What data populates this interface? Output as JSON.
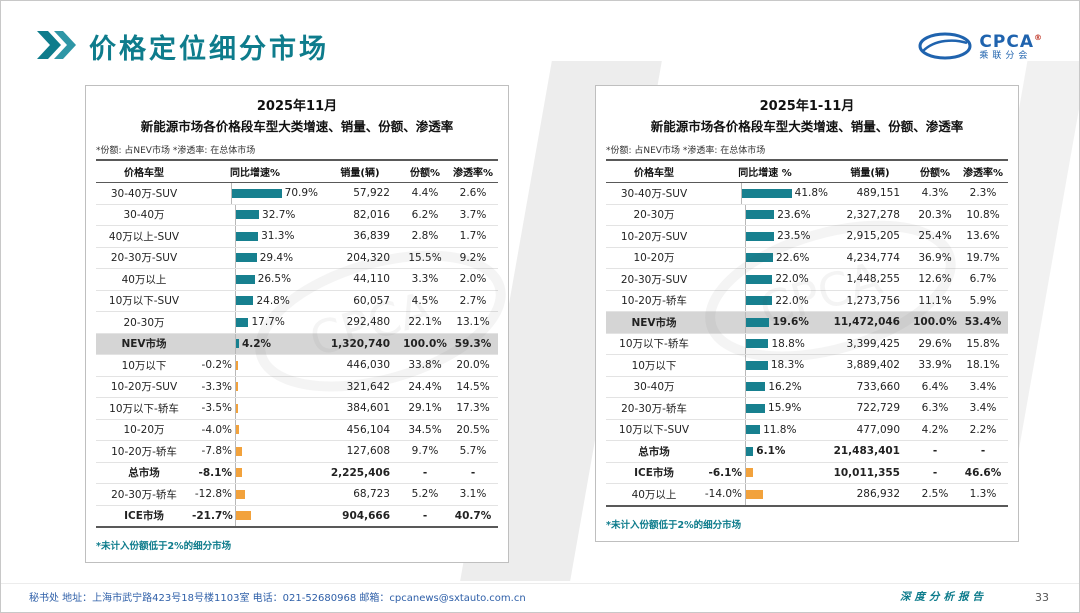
{
  "slide": {
    "title": "价格定位细分市场",
    "footer_text": "秘书处  地址：上海市武宁路423号18号楼1103室  电话：021-52680968  邮箱：cpcanews@sxtauto.com.cn",
    "report_label": "深度分析报告",
    "page_number": "33",
    "logo_text": "CPCA",
    "logo_reg": "®",
    "logo_subtext": "乘联分会"
  },
  "colors": {
    "accent_teal": "#0E7C8C",
    "bar_positive": "#17808F",
    "bar_negative": "#F2A23C",
    "highlight_row": "#D5D5D5",
    "footer_blue": "#2E5FA8",
    "logo_blue": "#1F63AE"
  },
  "chart_data": [
    {
      "type": "table",
      "title_line1": "2025年11月",
      "title_line2": "新能源市场各价格段车型大类增速、销量、份额、渗透率",
      "note": "*份额: 占NEV市场  *渗透率: 在总体市场",
      "footnote": "*未计入份额低于2%的细分市场",
      "columns": [
        "价格车型",
        "同比增速%",
        "销量(辆)",
        "份额%",
        "渗透率%"
      ],
      "bar_max": 70.9,
      "rows": [
        {
          "label": "30-40万-SUV",
          "growth": 70.9,
          "growth_label": "70.9%",
          "sales": "57,922",
          "share": "4.4%",
          "penetration": "2.6%"
        },
        {
          "label": "30-40万",
          "growth": 32.7,
          "growth_label": "32.7%",
          "sales": "82,016",
          "share": "6.2%",
          "penetration": "3.7%"
        },
        {
          "label": "40万以上-SUV",
          "growth": 31.3,
          "growth_label": "31.3%",
          "sales": "36,839",
          "share": "2.8%",
          "penetration": "1.7%"
        },
        {
          "label": "20-30万-SUV",
          "growth": 29.4,
          "growth_label": "29.4%",
          "sales": "204,320",
          "share": "15.5%",
          "penetration": "9.2%"
        },
        {
          "label": "40万以上",
          "growth": 26.5,
          "growth_label": "26.5%",
          "sales": "44,110",
          "share": "3.3%",
          "penetration": "2.0%"
        },
        {
          "label": "10万以下-SUV",
          "growth": 24.8,
          "growth_label": "24.8%",
          "sales": "60,057",
          "share": "4.5%",
          "penetration": "2.7%"
        },
        {
          "label": "20-30万",
          "growth": 17.7,
          "growth_label": "17.7%",
          "sales": "292,480",
          "share": "22.1%",
          "penetration": "13.1%"
        },
        {
          "label": "NEV市场",
          "growth": 4.2,
          "growth_label": "4.2%",
          "sales": "1,320,740",
          "share": "100.0%",
          "penetration": "59.3%",
          "highlight": true,
          "bold": true
        },
        {
          "label": "10万以下",
          "growth": -0.2,
          "growth_label": "-0.2%",
          "sales": "446,030",
          "share": "33.8%",
          "penetration": "20.0%"
        },
        {
          "label": "10-20万-SUV",
          "growth": -3.3,
          "growth_label": "-3.3%",
          "sales": "321,642",
          "share": "24.4%",
          "penetration": "14.5%"
        },
        {
          "label": "10万以下-轿车",
          "growth": -3.5,
          "growth_label": "-3.5%",
          "sales": "384,601",
          "share": "29.1%",
          "penetration": "17.3%"
        },
        {
          "label": "10-20万",
          "growth": -4.0,
          "growth_label": "-4.0%",
          "sales": "456,104",
          "share": "34.5%",
          "penetration": "20.5%"
        },
        {
          "label": "10-20万-轿车",
          "growth": -7.8,
          "growth_label": "-7.8%",
          "sales": "127,608",
          "share": "9.7%",
          "penetration": "5.7%"
        },
        {
          "label": "总市场",
          "growth": -8.1,
          "growth_label": "-8.1%",
          "sales": "2,225,406",
          "share": "-",
          "penetration": "-",
          "bold": true
        },
        {
          "label": "20-30万-轿车",
          "growth": -12.8,
          "growth_label": "-12.8%",
          "sales": "68,723",
          "share": "5.2%",
          "penetration": "3.1%"
        },
        {
          "label": "ICE市场",
          "growth": -21.7,
          "growth_label": "-21.7%",
          "sales": "904,666",
          "share": "-",
          "penetration": "40.7%",
          "bold": true
        }
      ]
    },
    {
      "type": "table",
      "title_line1": "2025年1-11月",
      "title_line2": "新能源市场各价格段车型大类增速、销量、份额、渗透率",
      "note": "*份额: 占NEV市场  *渗透率: 在总体市场",
      "footnote": "*未计入份额低于2%的细分市场",
      "columns": [
        "价格车型",
        "同比增速 %",
        "销量(辆)",
        "份额%",
        "渗透率%"
      ],
      "bar_max": 41.8,
      "rows": [
        {
          "label": "30-40万-SUV",
          "growth": 41.8,
          "growth_label": "41.8%",
          "sales": "489,151",
          "share": "4.3%",
          "penetration": "2.3%"
        },
        {
          "label": "20-30万",
          "growth": 23.6,
          "growth_label": "23.6%",
          "sales": "2,327,278",
          "share": "20.3%",
          "penetration": "10.8%"
        },
        {
          "label": "10-20万-SUV",
          "growth": 23.5,
          "growth_label": "23.5%",
          "sales": "2,915,205",
          "share": "25.4%",
          "penetration": "13.6%"
        },
        {
          "label": "10-20万",
          "growth": 22.6,
          "growth_label": "22.6%",
          "sales": "4,234,774",
          "share": "36.9%",
          "penetration": "19.7%"
        },
        {
          "label": "20-30万-SUV",
          "growth": 22.0,
          "growth_label": "22.0%",
          "sales": "1,448,255",
          "share": "12.6%",
          "penetration": "6.7%"
        },
        {
          "label": "10-20万-轿车",
          "growth": 22.0,
          "growth_label": "22.0%",
          "sales": "1,273,756",
          "share": "11.1%",
          "penetration": "5.9%"
        },
        {
          "label": "NEV市场",
          "growth": 19.6,
          "growth_label": "19.6%",
          "sales": "11,472,046",
          "share": "100.0%",
          "penetration": "53.4%",
          "highlight": true,
          "bold": true
        },
        {
          "label": "10万以下-轿车",
          "growth": 18.8,
          "growth_label": "18.8%",
          "sales": "3,399,425",
          "share": "29.6%",
          "penetration": "15.8%"
        },
        {
          "label": "10万以下",
          "growth": 18.3,
          "growth_label": "18.3%",
          "sales": "3,889,402",
          "share": "33.9%",
          "penetration": "18.1%"
        },
        {
          "label": "30-40万",
          "growth": 16.2,
          "growth_label": "16.2%",
          "sales": "733,660",
          "share": "6.4%",
          "penetration": "3.4%"
        },
        {
          "label": "20-30万-轿车",
          "growth": 15.9,
          "growth_label": "15.9%",
          "sales": "722,729",
          "share": "6.3%",
          "penetration": "3.4%"
        },
        {
          "label": "10万以下-SUV",
          "growth": 11.8,
          "growth_label": "11.8%",
          "sales": "477,090",
          "share": "4.2%",
          "penetration": "2.2%"
        },
        {
          "label": "总市场",
          "growth": 6.1,
          "growth_label": "6.1%",
          "sales": "21,483,401",
          "share": "-",
          "penetration": "-",
          "bold": true
        },
        {
          "label": "ICE市场",
          "growth": -6.1,
          "growth_label": "-6.1%",
          "sales": "10,011,355",
          "share": "-",
          "penetration": "46.6%",
          "bold": true
        },
        {
          "label": "40万以上",
          "growth": -14.0,
          "growth_label": "-14.0%",
          "sales": "286,932",
          "share": "2.5%",
          "penetration": "1.3%"
        }
      ]
    }
  ]
}
